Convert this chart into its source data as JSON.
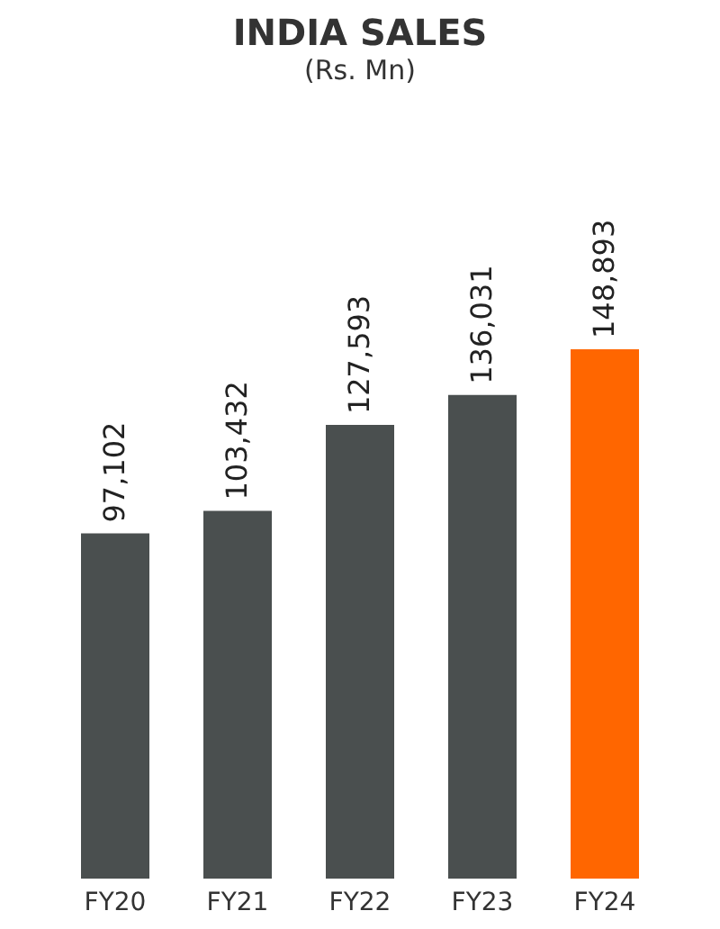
{
  "chart_data": {
    "type": "bar",
    "title": "INDIA SALES",
    "subtitle": "(Rs. Mn)",
    "categories": [
      "FY20",
      "FY21",
      "FY22",
      "FY23",
      "FY24"
    ],
    "values": [
      97102,
      103432,
      127593,
      136031,
      148893
    ],
    "value_labels": [
      "97,102",
      "103,432",
      "127,593",
      "136,031",
      "148,893"
    ],
    "colors": [
      "#4a4f4f",
      "#4a4f4f",
      "#4a4f4f",
      "#4a4f4f",
      "#ff6600"
    ]
  }
}
